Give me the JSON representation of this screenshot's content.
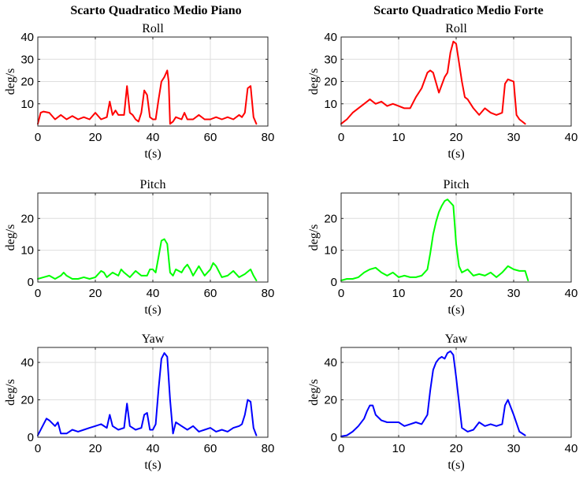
{
  "figure": {
    "column_titles": [
      "Scarto Quadratico Medio Piano",
      "Scarto Quadratico Medio Forte"
    ],
    "colors": {
      "roll": "#ff0000",
      "pitch": "#00ff00",
      "yaw": "#0000ff",
      "grid": "#dedede",
      "axes": "#262626"
    }
  },
  "chart_data": [
    {
      "type": "line",
      "title": "Roll",
      "xlabel": "t(s)",
      "ylabel": "deg/s",
      "xlim": [
        0,
        80
      ],
      "ylim": [
        0,
        40
      ],
      "xticks": [
        0,
        20,
        40,
        60,
        80
      ],
      "yticks": [
        10,
        20,
        30,
        40
      ],
      "grid": true,
      "series": [
        {
          "color": "#ff0000",
          "x": [
            0,
            1,
            2,
            4,
            6,
            8,
            10,
            12,
            14,
            16,
            18,
            20,
            22,
            24,
            25,
            26,
            27,
            28,
            30,
            31,
            32,
            33,
            34,
            35,
            36,
            37,
            38,
            39,
            40,
            41,
            42,
            43,
            44,
            45,
            45.5,
            46,
            47,
            48,
            50,
            51,
            52,
            54,
            56,
            58,
            60,
            62,
            64,
            66,
            68,
            70,
            71,
            72,
            73,
            74,
            75,
            76
          ],
          "y": [
            1,
            6,
            6.5,
            6,
            3,
            5,
            3,
            4.5,
            3,
            4,
            3,
            6,
            3,
            4,
            11,
            5,
            7,
            5,
            5,
            18,
            6,
            5,
            3,
            2,
            6,
            16,
            14,
            4,
            3,
            3,
            12,
            20,
            22,
            25,
            20,
            1,
            2,
            4,
            3,
            6,
            3,
            3,
            5,
            3,
            3,
            4,
            3,
            4,
            3,
            5,
            4,
            6,
            17,
            18,
            4,
            1
          ]
        }
      ]
    },
    {
      "type": "line",
      "title": "Roll",
      "xlabel": "t(s)",
      "ylabel": "deg/s",
      "xlim": [
        0,
        40
      ],
      "ylim": [
        0,
        40
      ],
      "xticks": [
        0,
        10,
        20,
        30,
        40
      ],
      "yticks": [
        10,
        20,
        30,
        40
      ],
      "grid": true,
      "series": [
        {
          "color": "#ff0000",
          "x": [
            0,
            0.5,
            1,
            2,
            3,
            4,
            5,
            6,
            7,
            8,
            9,
            10,
            11,
            12,
            13,
            14,
            15,
            15.5,
            16,
            17,
            18,
            18.5,
            19,
            19.5,
            20,
            21,
            21.5,
            22,
            23,
            24,
            25,
            26,
            27,
            28,
            28.5,
            29,
            30,
            30.5,
            31,
            32
          ],
          "y": [
            1,
            2,
            3,
            6,
            8,
            10,
            12,
            10,
            11,
            9,
            10,
            9,
            8,
            8,
            13,
            17,
            24,
            25,
            24,
            15,
            22,
            24,
            33,
            38,
            37,
            20,
            13,
            12,
            8,
            5,
            8,
            6,
            5,
            6,
            19,
            21,
            20,
            5,
            3,
            1
          ]
        }
      ]
    },
    {
      "type": "line",
      "title": "Pitch",
      "xlabel": "t(s)",
      "ylabel": "deg/s",
      "xlim": [
        0,
        80
      ],
      "ylim": [
        0,
        28
      ],
      "xticks": [
        0,
        20,
        40,
        60,
        80
      ],
      "yticks": [
        0,
        10,
        20
      ],
      "grid": true,
      "series": [
        {
          "color": "#00ff00",
          "x": [
            0,
            2,
            4,
            6,
            8,
            9,
            10,
            12,
            14,
            16,
            18,
            20,
            22,
            23,
            24,
            26,
            28,
            29,
            30,
            32,
            34,
            36,
            38,
            39,
            40,
            41,
            42,
            43,
            44,
            45,
            46,
            47,
            48,
            50,
            51,
            52,
            53,
            54,
            56,
            58,
            60,
            61,
            62,
            64,
            66,
            68,
            70,
            72,
            74,
            75,
            76
          ],
          "y": [
            1,
            1.5,
            2,
            1,
            2,
            3,
            2,
            1,
            1,
            1.5,
            1,
            1.5,
            3.5,
            3,
            1.5,
            3,
            2,
            4,
            3,
            1.5,
            3.5,
            2,
            2,
            4,
            4,
            3,
            8,
            13,
            13.5,
            12,
            3,
            2,
            4,
            3,
            4.5,
            5.5,
            4,
            2,
            5,
            2,
            4,
            6,
            5,
            1.5,
            2,
            3.5,
            1.5,
            2.5,
            4,
            2,
            0.5
          ]
        }
      ]
    },
    {
      "type": "line",
      "title": "Pitch",
      "xlabel": "t(s)",
      "ylabel": "deg/s",
      "xlim": [
        0,
        40
      ],
      "ylim": [
        0,
        28
      ],
      "xticks": [
        0,
        10,
        20,
        30,
        40
      ],
      "yticks": [
        0,
        10,
        20
      ],
      "grid": true,
      "series": [
        {
          "color": "#00ff00",
          "x": [
            0,
            1,
            2,
            3,
            4,
            5,
            6,
            7,
            8,
            9,
            10,
            11,
            12,
            13,
            14,
            15,
            15.5,
            16,
            16.5,
            17,
            17.5,
            18,
            18.5,
            19,
            19.5,
            20,
            20.5,
            21,
            22,
            23,
            24,
            25,
            26,
            27,
            28,
            29,
            30,
            31,
            32,
            32.5
          ],
          "y": [
            0.5,
            1,
            1,
            1.5,
            3,
            4,
            4.5,
            3,
            2,
            3,
            1.5,
            2,
            1.5,
            1.5,
            2,
            4,
            9,
            15,
            19,
            22,
            24,
            25.5,
            26,
            25,
            24,
            12,
            5,
            3,
            4,
            2,
            2.5,
            2,
            3,
            1.5,
            3,
            5,
            4,
            3.5,
            3.5,
            0.5
          ]
        }
      ]
    },
    {
      "type": "line",
      "title": "Yaw",
      "xlabel": "t(s)",
      "ylabel": "deg/s",
      "xlim": [
        0,
        80
      ],
      "ylim": [
        0,
        48
      ],
      "xticks": [
        0,
        20,
        40,
        60,
        80
      ],
      "yticks": [
        0,
        20,
        40
      ],
      "grid": true,
      "series": [
        {
          "color": "#0000ff",
          "x": [
            0,
            2,
            3,
            4,
            6,
            7,
            8,
            10,
            12,
            14,
            16,
            18,
            20,
            22,
            24,
            25,
            26,
            28,
            30,
            31,
            32,
            34,
            36,
            37,
            38,
            39,
            40,
            41,
            42,
            43,
            44,
            45,
            46,
            47,
            48,
            50,
            52,
            54,
            56,
            58,
            60,
            62,
            64,
            66,
            68,
            70,
            71,
            72,
            73,
            74,
            75,
            76
          ],
          "y": [
            1,
            7,
            10,
            9,
            6,
            8,
            2,
            2,
            4,
            3,
            4,
            5,
            6,
            7,
            5,
            12,
            6,
            4,
            5,
            18,
            6,
            4,
            5,
            12,
            13,
            4,
            4,
            7,
            26,
            42,
            45,
            43,
            20,
            2,
            8,
            6,
            4,
            6,
            3,
            4,
            5,
            3,
            4,
            3,
            5,
            6,
            7,
            12,
            20,
            19,
            5,
            1
          ]
        }
      ]
    },
    {
      "type": "line",
      "title": "Yaw",
      "xlabel": "t(s)",
      "ylabel": "deg/s",
      "xlim": [
        0,
        40
      ],
      "ylim": [
        0,
        48
      ],
      "xticks": [
        0,
        10,
        20,
        30,
        40
      ],
      "yticks": [
        0,
        20,
        40
      ],
      "grid": true,
      "series": [
        {
          "color": "#0000ff",
          "x": [
            0,
            1,
            2,
            3,
            4,
            4.5,
            5,
            5.5,
            6,
            7,
            8,
            9,
            10,
            11,
            12,
            13,
            14,
            15,
            15.5,
            16,
            16.5,
            17,
            17.5,
            18,
            18.5,
            19,
            19.5,
            20,
            21,
            22,
            23,
            24,
            25,
            26,
            27,
            28,
            28.5,
            29,
            30,
            31,
            32
          ],
          "y": [
            0.5,
            1,
            3,
            6,
            10,
            14,
            17,
            17,
            12,
            9,
            8,
            8,
            8,
            6,
            7,
            8,
            7,
            12,
            25,
            36,
            40,
            42,
            43,
            42,
            45,
            46,
            44,
            32,
            5,
            3,
            4,
            8,
            6,
            7,
            6,
            7,
            17,
            20,
            12,
            3,
            1
          ]
        }
      ]
    }
  ]
}
